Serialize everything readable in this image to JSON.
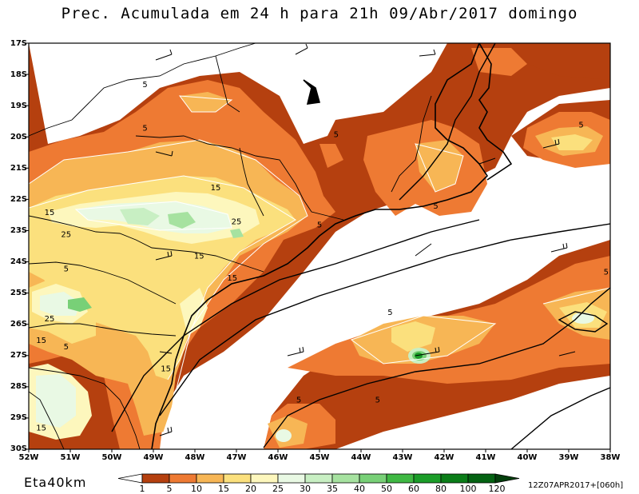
{
  "title": "Prec. Acumulada em 24 h para 21h 09/Abr/2017 domingo",
  "model": "Eta40km",
  "run_label": "12Z07APR2017+[060h]",
  "axes": {
    "lat_labels": [
      "17S",
      "18S",
      "19S",
      "20S",
      "21S",
      "22S",
      "23S",
      "24S",
      "25S",
      "26S",
      "27S",
      "28S",
      "29S",
      "30S"
    ],
    "lon_labels": [
      "52W",
      "51W",
      "50W",
      "49W",
      "48W",
      "47W",
      "46W",
      "45W",
      "44W",
      "43W",
      "42W",
      "41W",
      "40W",
      "39W",
      "38W"
    ]
  },
  "colorbar": {
    "levels": [
      "1",
      "5",
      "10",
      "15",
      "20",
      "25",
      "30",
      "35",
      "40",
      "50",
      "60",
      "80",
      "100",
      "120"
    ],
    "colors": [
      "#b5400f",
      "#ee7a33",
      "#f7b655",
      "#fbe07d",
      "#fdf7bd",
      "#e9f9e4",
      "#c8efc3",
      "#a6e2a0",
      "#78d077",
      "#3fb843",
      "#1b9d29",
      "#0a7d18",
      "#046212",
      "#033f0c"
    ]
  },
  "contour_labels": [
    {
      "text": "5",
      "lat": 18.3,
      "lon": 49.2
    },
    {
      "text": "5",
      "lat": 19.7,
      "lon": 49.2
    },
    {
      "text": "5",
      "lat": 19.9,
      "lon": 44.6
    },
    {
      "text": "5",
      "lat": 19.6,
      "lon": 38.7
    },
    {
      "text": "5",
      "lat": 22.2,
      "lon": 42.2
    },
    {
      "text": "5",
      "lat": 22.8,
      "lon": 45.0
    },
    {
      "text": "15",
      "lat": 21.6,
      "lon": 47.5
    },
    {
      "text": "15",
      "lat": 22.4,
      "lon": 51.5
    },
    {
      "text": "25",
      "lat": 22.7,
      "lon": 47.0
    },
    {
      "text": "25",
      "lat": 23.1,
      "lon": 51.1
    },
    {
      "text": "15",
      "lat": 23.8,
      "lon": 47.9
    },
    {
      "text": "15",
      "lat": 24.5,
      "lon": 47.1
    },
    {
      "text": "5",
      "lat": 24.2,
      "lon": 51.1
    },
    {
      "text": "25",
      "lat": 25.8,
      "lon": 51.5
    },
    {
      "text": "15",
      "lat": 26.5,
      "lon": 51.7
    },
    {
      "text": "5",
      "lat": 26.7,
      "lon": 51.1
    },
    {
      "text": "15",
      "lat": 27.4,
      "lon": 48.7
    },
    {
      "text": "15",
      "lat": 29.3,
      "lon": 51.7
    },
    {
      "text": "5",
      "lat": 28.4,
      "lon": 45.5
    },
    {
      "text": "5",
      "lat": 28.4,
      "lon": 43.6
    },
    {
      "text": "5",
      "lat": 25.6,
      "lon": 43.3
    },
    {
      "text": "5",
      "lat": 24.3,
      "lon": 38.1
    }
  ]
}
